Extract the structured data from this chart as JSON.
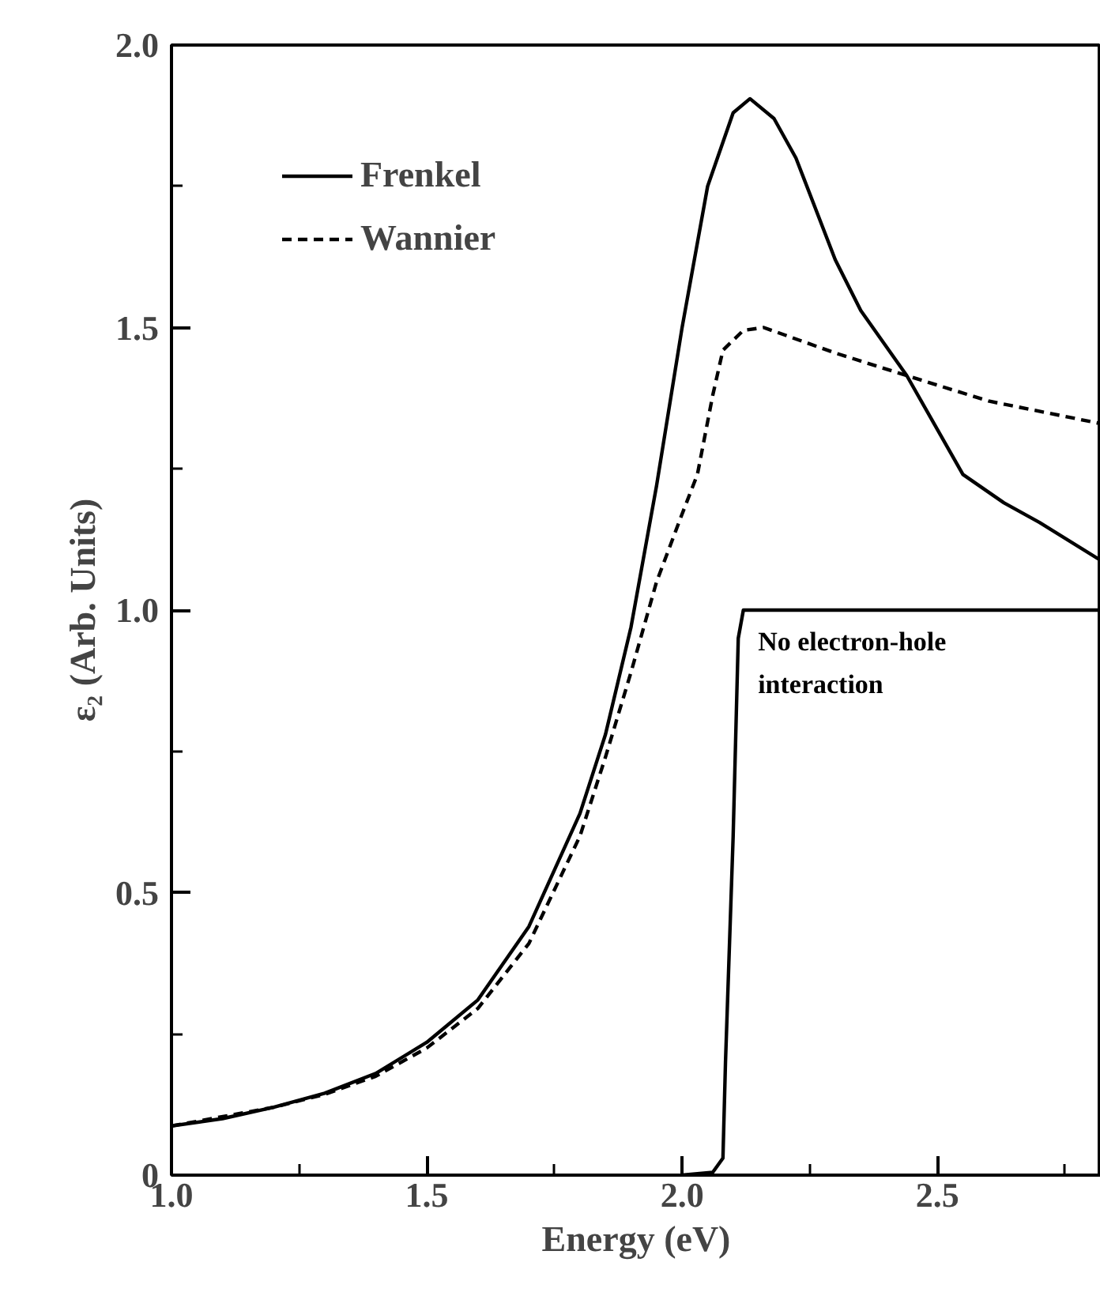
{
  "chart_data": {
    "type": "line",
    "xlabel": "Energy (eV)",
    "ylabel": "ε₂ (Arb. Units)",
    "xlim": [
      1.0,
      2.82
    ],
    "ylim": [
      0,
      2.0
    ],
    "xticks": [
      {
        "value": 1.0,
        "label": "1.0"
      },
      {
        "value": 1.25,
        "label": null
      },
      {
        "value": 1.5,
        "label": "1.5"
      },
      {
        "value": 1.75,
        "label": null
      },
      {
        "value": 2.0,
        "label": "2.0"
      },
      {
        "value": 2.25,
        "label": null
      },
      {
        "value": 2.5,
        "label": "2.5"
      },
      {
        "value": 2.75,
        "label": null
      }
    ],
    "yticks": [
      0,
      {
        "value": 0.25,
        "label": null
      },
      0.5,
      {
        "value": 0.75,
        "label": null
      },
      {
        "value": 1.0,
        "label": "1.0"
      },
      {
        "value": 1.25,
        "label": null
      },
      1.5,
      {
        "value": 1.75,
        "label": null
      },
      {
        "value": 2.0,
        "label": "2.0"
      }
    ],
    "grid": false,
    "legend": "top left",
    "marker": "none",
    "series": [
      {
        "name": "Frenkel",
        "color": "#000000",
        "line_style": "solid",
        "x": [
          1.0,
          1.1,
          1.2,
          1.3,
          1.4,
          1.5,
          1.6,
          1.7,
          1.8,
          1.85,
          1.9,
          1.95,
          2.0,
          2.05,
          2.1,
          2.133,
          2.18,
          2.223,
          2.3,
          2.35,
          2.44,
          2.55,
          2.63,
          2.7,
          2.82
        ],
        "values": [
          0.087,
          0.1,
          0.12,
          0.145,
          0.18,
          0.235,
          0.31,
          0.44,
          0.64,
          0.78,
          0.97,
          1.22,
          1.5,
          1.75,
          1.88,
          1.905,
          1.87,
          1.8,
          1.62,
          1.53,
          1.415,
          1.24,
          1.19,
          1.155,
          1.088
        ]
      },
      {
        "name": "Wannier",
        "color": "#000000",
        "line_style": "dashed",
        "x": [
          1.0,
          1.2,
          1.3,
          1.4,
          1.5,
          1.6,
          1.7,
          1.8,
          1.85,
          1.9,
          1.95,
          2.0,
          2.03,
          2.06,
          2.08,
          2.12,
          2.16,
          2.3,
          2.44,
          2.6,
          2.82
        ],
        "values": [
          0.087,
          0.12,
          0.143,
          0.175,
          0.225,
          0.295,
          0.41,
          0.6,
          0.74,
          0.89,
          1.05,
          1.17,
          1.24,
          1.38,
          1.46,
          1.495,
          1.5,
          1.455,
          1.415,
          1.37,
          1.33
        ]
      },
      {
        "color": "#000000",
        "line_style": "solid",
        "x": [
          2.0,
          2.06,
          2.08,
          2.085,
          2.1,
          2.11,
          2.12,
          2.82
        ],
        "values": [
          0.0,
          0.005,
          0.03,
          0.2,
          0.6,
          0.95,
          1.0,
          1.0
        ]
      }
    ],
    "annotations": [
      {
        "text": "No electron-hole\ninteraction",
        "x": 2.13,
        "y": 0.97
      }
    ]
  }
}
